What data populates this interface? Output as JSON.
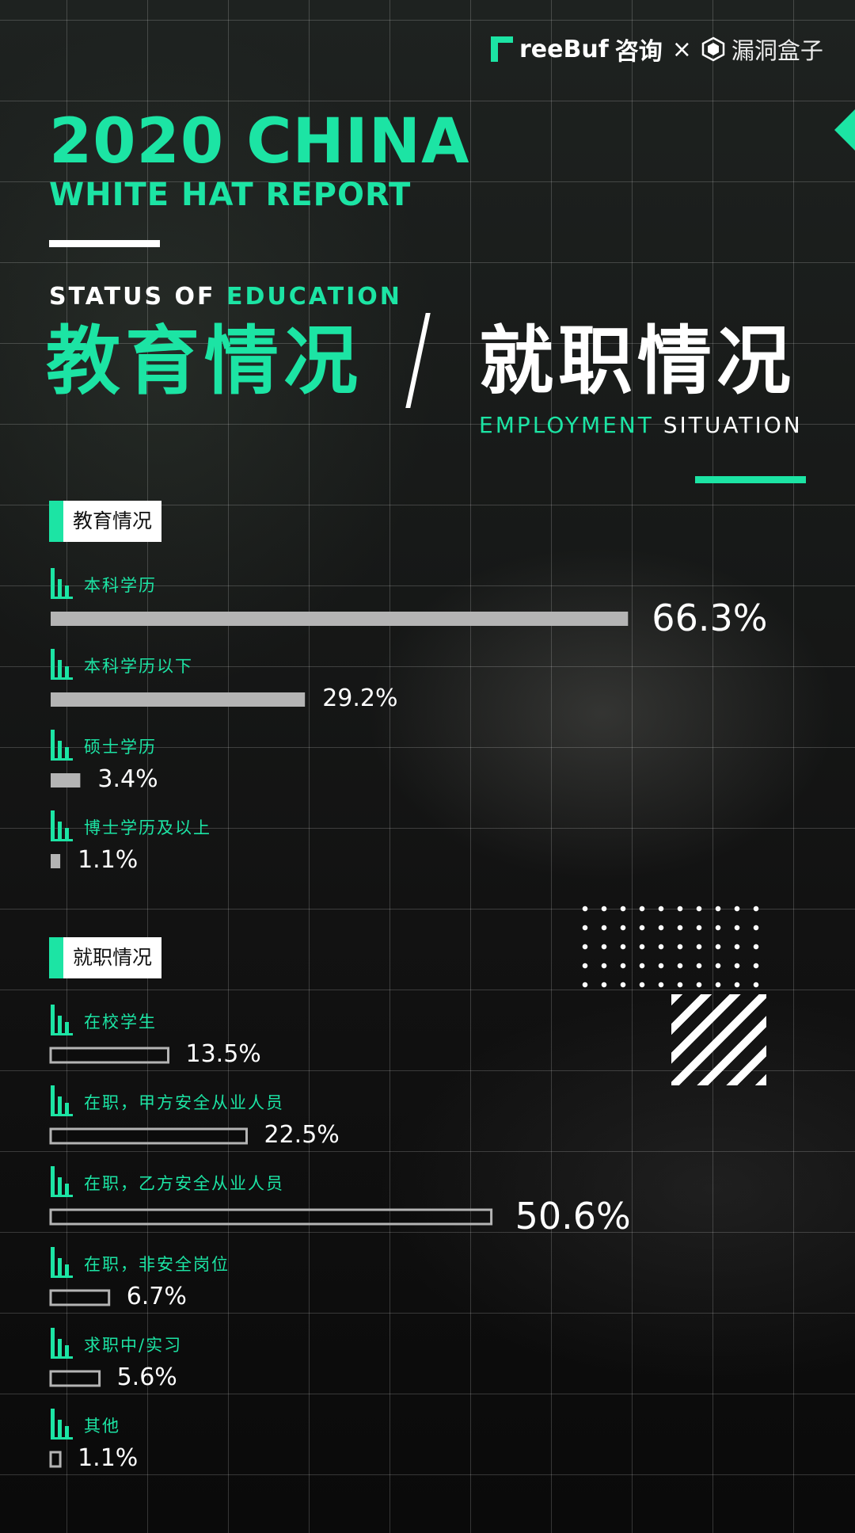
{
  "header": {
    "brand": "reeBuf",
    "brand_suffix": "咨询",
    "cross": "×",
    "partner": "漏洞盒子"
  },
  "title": {
    "line1": "2020 CHINA",
    "line2": "WHITE HAT REPORT"
  },
  "topic": {
    "edu_en_1": "STATUS OF ",
    "edu_en_2": "EDUCATION",
    "edu_cn": "教育情况",
    "emp_cn": "就职情况",
    "emp_en_1": "EMPLOYMENT",
    "emp_en_2": " SITUATION"
  },
  "colors": {
    "accent": "#1ce4a4",
    "education_bar": "#b4b4b4",
    "employment_bar_outline": "#b4b4b4"
  },
  "chart_data": [
    {
      "type": "bar",
      "orientation": "horizontal",
      "title": "教育情况",
      "categories": [
        "本科学历",
        "本科学历以下",
        "硕士学历",
        "博士学历及以上"
      ],
      "values": [
        66.3,
        29.2,
        3.4,
        1.1
      ],
      "value_labels": [
        "66.3%",
        "29.2%",
        "3.4%",
        "1.1%"
      ],
      "unit": "%"
    },
    {
      "type": "bar",
      "orientation": "horizontal",
      "title": "就职情况",
      "categories": [
        "在校学生",
        "在职，甲方安全从业人员",
        "在职，乙方安全从业人员",
        "在职，非安全岗位",
        "求职中/实习",
        "其他"
      ],
      "values": [
        13.5,
        22.5,
        50.6,
        6.7,
        5.6,
        1.1
      ],
      "value_labels": [
        "13.5%",
        "22.5%",
        "50.6%",
        "6.7%",
        "5.6%",
        "1.1%"
      ],
      "unit": "%"
    }
  ]
}
